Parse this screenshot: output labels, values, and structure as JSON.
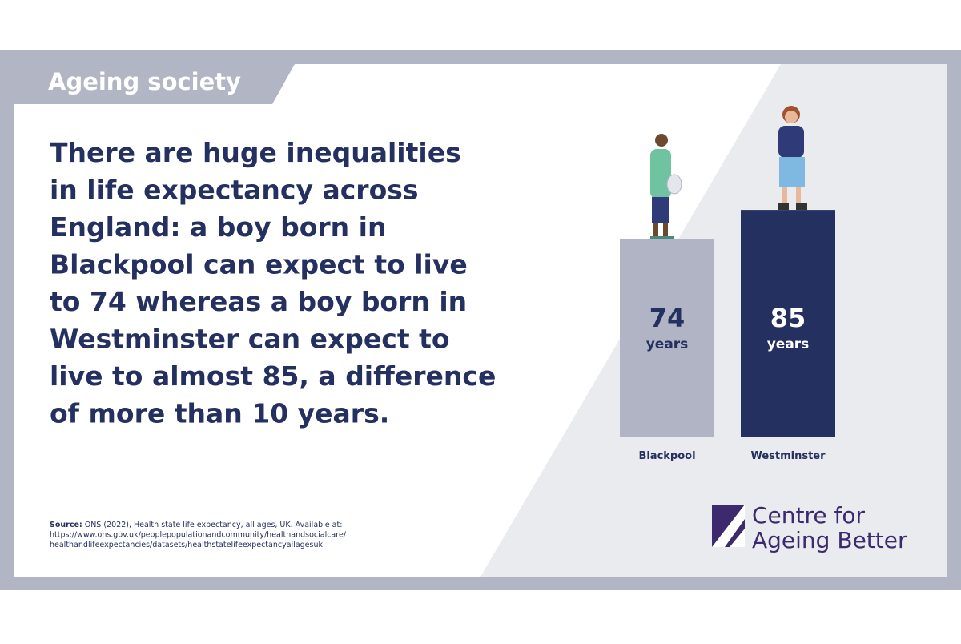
{
  "tag": "Ageing society",
  "headline_lines": [
    "There are huge inequalities",
    "in life expectancy across",
    "England: a boy born in",
    "Blackpool can expect to live",
    "to 74 whereas a boy born in",
    "Westminster can expect to",
    "live to almost 85, a difference",
    "of more than 10 years."
  ],
  "source": {
    "label": "Source:",
    "lines": [
      " ONS (2022), Health state life expectancy, all ages, UK. Available at:",
      "https://www.ons.gov.uk/peoplepopulationandcommunity/healthandsocialcare/",
      "healthandlifeexpectancies/datasets/healthstatelifeexpectancyallagesuk"
    ]
  },
  "logo": {
    "lines": [
      "Centre for",
      "Ageing Better"
    ]
  },
  "chart_data": {
    "type": "bar",
    "categories": [
      "Blackpool",
      "Westminster"
    ],
    "values": [
      74,
      85
    ],
    "unit": "years",
    "colors": [
      "#b0b4c5",
      "#243060"
    ]
  }
}
